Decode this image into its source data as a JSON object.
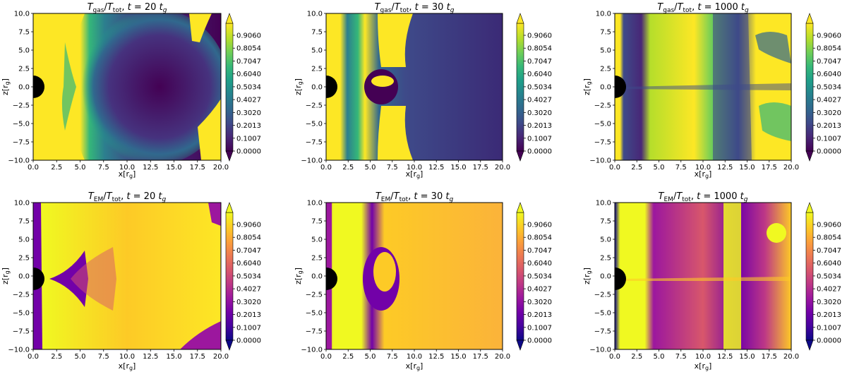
{
  "panels": [
    {
      "id": "gas-t20",
      "colormap": "viridis",
      "title": {
        "q": "gas",
        "tval": "20"
      }
    },
    {
      "id": "gas-t30",
      "colormap": "viridis",
      "title": {
        "q": "gas",
        "tval": "30"
      }
    },
    {
      "id": "gas-t1000",
      "colormap": "viridis",
      "title": {
        "q": "gas",
        "tval": "1000"
      }
    },
    {
      "id": "em-t20",
      "colormap": "plasma",
      "title": {
        "q": "EM",
        "tval": "20"
      }
    },
    {
      "id": "em-t30",
      "colormap": "plasma",
      "title": {
        "q": "EM",
        "tval": "30"
      }
    },
    {
      "id": "em-t1000",
      "colormap": "plasma",
      "title": {
        "q": "EM",
        "tval": "1000"
      }
    }
  ],
  "title_parts": {
    "T": "T",
    "tot": "tot",
    "slash": "/",
    "comma": ", ",
    "t_eq": "t = ",
    "tg": "t",
    "g": "g"
  },
  "axis_labels": {
    "x_main": "x[r",
    "y_main": "z[r",
    "sub": "g",
    "close": "]"
  },
  "chart_data": {
    "type": "heatmap",
    "x_ticks": [
      "0.0",
      "2.5",
      "5.0",
      "7.5",
      "10.0",
      "12.5",
      "15.0",
      "17.5",
      "20.0"
    ],
    "y_ticks": [
      "10.0",
      "7.5",
      "5.0",
      "2.5",
      "0.0",
      "−2.5",
      "−5.0",
      "−7.5",
      "−10.0"
    ],
    "xlim": [
      0,
      20
    ],
    "ylim": [
      -10,
      10
    ],
    "colorbar_ticks": [
      "0.9060",
      "0.8054",
      "0.7047",
      "0.6040",
      "0.5034",
      "0.4027",
      "0.3020",
      "0.2013",
      "0.1007",
      "0.0000"
    ],
    "colorbar_range": [
      0,
      1
    ],
    "colormaps": {
      "viridis": [
        "#440154",
        "#482777",
        "#3e4a89",
        "#31688e",
        "#26828e",
        "#1f9e89",
        "#35b779",
        "#6ece58",
        "#b5de2b",
        "#fde725"
      ],
      "plasma": [
        "#0d0887",
        "#46039f",
        "#7201a8",
        "#9c179e",
        "#bd3786",
        "#d8576b",
        "#ed7953",
        "#fb9f3a",
        "#fdca26",
        "#f0f921"
      ]
    }
  }
}
